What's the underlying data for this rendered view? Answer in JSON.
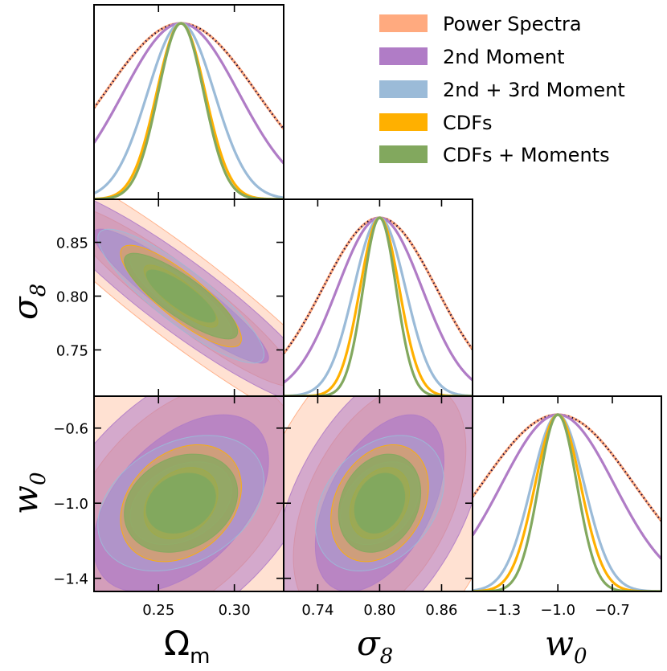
{
  "chart_data": {
    "type": "triangle-corner",
    "parameters": [
      {
        "name": "omega_m",
        "label": "Ω",
        "label_sub": "m",
        "mean": 0.2648,
        "range": [
          0.2075,
          0.3325
        ],
        "ticks": [
          0.25,
          0.3
        ],
        "tick_labels": [
          "0.25",
          "0.30"
        ]
      },
      {
        "name": "sigma_8",
        "label": "σ",
        "label_sub": "8",
        "mean": 0.8,
        "range": [
          0.707,
          0.89
        ],
        "ticks": [
          0.74,
          0.8,
          0.86
        ],
        "tick_labels": [
          "0.74",
          "0.80",
          "0.86"
        ],
        "y_ticks": [
          0.75,
          0.8,
          0.85
        ],
        "y_tick_labels": [
          "0.75",
          "0.80",
          "0.85"
        ]
      },
      {
        "name": "w_0",
        "label": "w",
        "label_sub": "0",
        "mean": -1.0,
        "range": [
          -1.47,
          -0.43
        ],
        "ticks": [
          -1.3,
          -1.0,
          -0.7
        ],
        "tick_labels": [
          "−1.3",
          "−1.0",
          "−0.7"
        ],
        "y_ticks": [
          -1.4,
          -1.0,
          -0.6
        ],
        "y_tick_labels": [
          "−1.4",
          "−1.0",
          "−0.6"
        ]
      }
    ],
    "series": [
      {
        "name": "Power Spectra",
        "color": "#ffaa7f",
        "fill_alpha": 0.35,
        "sigma": [
          0.05,
          0.055,
          0.42
        ],
        "rho": [
          -0.93,
          0.45,
          0.45
        ],
        "dotted": true
      },
      {
        "name": "2nd Moment",
        "color": "#b07cc6",
        "fill_alpha": 0.55,
        "sigma": [
          0.038,
          0.041,
          0.31
        ],
        "rho": [
          -0.92,
          0.48,
          0.48
        ],
        "dotted": false
      },
      {
        "name": "2nd + 3rd Moment",
        "color": "#9bbbd8",
        "fill_alpha": 0.3,
        "sigma": [
          0.022,
          0.025,
          0.145
        ],
        "rho": [
          -0.87,
          0.32,
          0.32
        ],
        "dotted": false
      },
      {
        "name": "CDFs",
        "color": "#ffb000",
        "fill_alpha": 0.38,
        "sigma": [
          0.016,
          0.019,
          0.125
        ],
        "rho": [
          -0.84,
          0.28,
          0.28
        ],
        "dotted": false
      },
      {
        "name": "CDFs + Moments",
        "color": "#82a85e",
        "fill_alpha": 0.75,
        "sigma": [
          0.015,
          0.016,
          0.105
        ],
        "rho": [
          -0.83,
          0.22,
          0.22
        ],
        "dotted": false
      }
    ],
    "legend": {
      "position": "top-right"
    }
  }
}
